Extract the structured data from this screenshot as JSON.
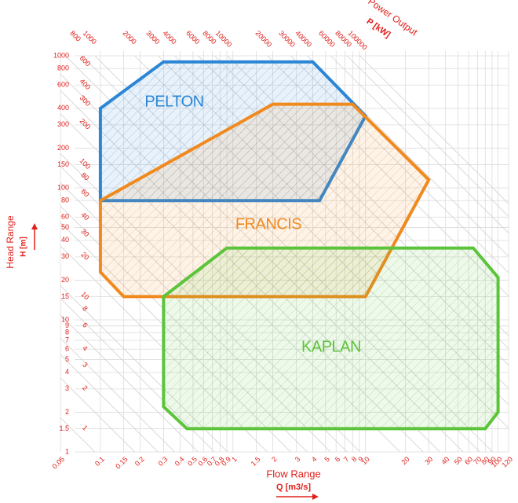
{
  "chart_data": {
    "type": "polygon",
    "x_label": "Flow Range",
    "x_unit": "Q [m3/s]",
    "y_label": "Head Range",
    "y_unit": "H [m]",
    "power_label": "Power Output",
    "power_unit": "P [kW]",
    "x_log": true,
    "y_log": true,
    "grid": true,
    "xlim": [
      0.05,
      120
    ],
    "ylim": [
      1,
      1000
    ],
    "xticks": [
      0.05,
      0.1,
      0.15,
      0.2,
      0.3,
      0.4,
      0.5,
      0.6,
      0.7,
      0.8,
      0.9,
      1,
      1.5,
      2,
      3,
      4,
      5,
      6,
      7,
      8,
      9,
      10,
      20,
      30,
      40,
      50,
      60,
      70,
      80,
      90,
      100,
      120
    ],
    "yticks": [
      1,
      1.5,
      2,
      3,
      4,
      5,
      6,
      7,
      8,
      9,
      10,
      15,
      20,
      30,
      40,
      50,
      60,
      80,
      100,
      150,
      200,
      300,
      400,
      600,
      800,
      1000
    ],
    "power_top": [
      800,
      1000,
      2000,
      3000,
      4000,
      6000,
      8000,
      10000,
      20000,
      30000,
      40000,
      60000,
      80000,
      100000
    ],
    "power_left": [
      600,
      400,
      300,
      200,
      100,
      80,
      60,
      40,
      30,
      20,
      10,
      8,
      6,
      4,
      3,
      2,
      1
    ],
    "series": [
      {
        "name": "PELTON",
        "color": "#2b86d6",
        "x": [
          0.1,
          4.5,
          10,
          4,
          0.3,
          0.1
        ],
        "values": [
          80,
          80,
          350,
          900,
          900,
          400
        ]
      },
      {
        "name": "FRANCIS",
        "color": "#f0891e",
        "x": [
          0.1,
          2,
          8,
          30,
          10,
          0.15,
          0.1
        ],
        "values": [
          80,
          430,
          430,
          115,
          15,
          15,
          23
        ]
      },
      {
        "name": "KAPLAN",
        "color": "#5cc43a",
        "x": [
          0.3,
          0.9,
          65,
          100,
          100,
          80,
          0.45,
          0.3
        ],
        "values": [
          15,
          35,
          35,
          21,
          2,
          1.5,
          1.5,
          2.2
        ]
      }
    ]
  }
}
